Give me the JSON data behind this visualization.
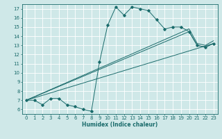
{
  "xlabel": "Humidex (Indice chaleur)",
  "ylabel": "",
  "xlim": [
    -0.5,
    23.5
  ],
  "ylim": [
    5.5,
    17.5
  ],
  "xticks": [
    0,
    1,
    2,
    3,
    4,
    5,
    6,
    7,
    8,
    9,
    10,
    11,
    12,
    13,
    14,
    15,
    16,
    17,
    18,
    19,
    20,
    21,
    22,
    23
  ],
  "yticks": [
    6,
    7,
    8,
    9,
    10,
    11,
    12,
    13,
    14,
    15,
    16,
    17
  ],
  "bg_color": "#cfe8e8",
  "grid_color": "#ffffff",
  "line_color": "#1a6b6b",
  "series_main": {
    "x": [
      0,
      1,
      2,
      3,
      4,
      5,
      6,
      7,
      8,
      9,
      10,
      11,
      12,
      13,
      14,
      15,
      16,
      17,
      18,
      19,
      20,
      21,
      22,
      23
    ],
    "y": [
      7.0,
      7.0,
      6.5,
      7.2,
      7.2,
      6.5,
      6.3,
      6.0,
      5.8,
      11.2,
      15.2,
      17.2,
      16.3,
      17.2,
      17.0,
      16.8,
      15.8,
      14.8,
      15.0,
      15.0,
      14.5,
      13.0,
      12.8,
      13.2
    ]
  },
  "series_line1": {
    "x": [
      0,
      23
    ],
    "y": [
      7.0,
      13.2
    ]
  },
  "series_line2": {
    "x": [
      0,
      20,
      21,
      22,
      23
    ],
    "y": [
      7.0,
      14.5,
      13.0,
      12.8,
      13.2
    ]
  },
  "series_line3": {
    "x": [
      0,
      20,
      21,
      22,
      23
    ],
    "y": [
      7.0,
      14.8,
      13.2,
      13.0,
      13.5
    ]
  }
}
